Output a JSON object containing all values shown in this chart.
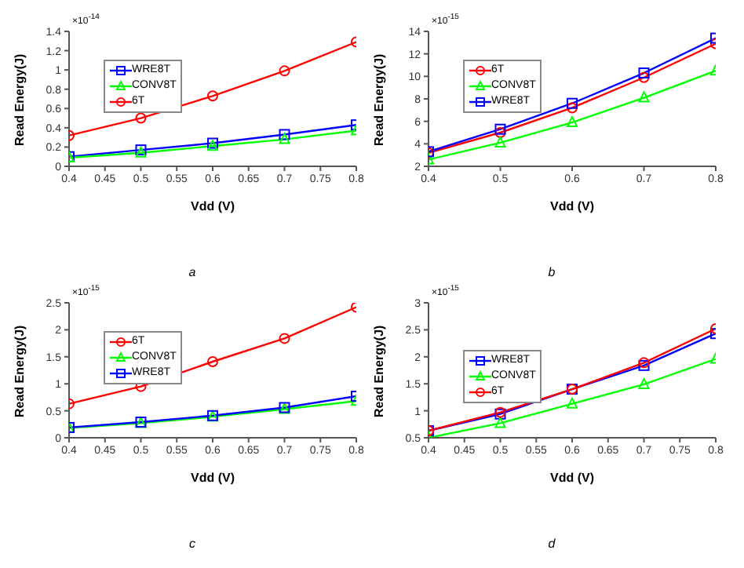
{
  "chart_data": [
    {
      "type": "line",
      "annotations": [
        "×10$^{-14}$",
        "a"
      ],
      "xlabel": "Vdd (V)",
      "ylabel": "Read Energy(J)",
      "x": [
        0.4,
        0.5,
        0.6,
        0.7,
        0.8
      ],
      "xlim": [
        0.4,
        0.8
      ],
      "xticks": [
        0.4,
        0.45,
        0.5,
        0.55,
        0.6,
        0.65,
        0.7,
        0.75,
        0.8
      ],
      "ylim": [
        0,
        1.4
      ],
      "yticks": [
        0,
        0.2,
        0.4,
        0.6,
        0.8,
        1,
        1.2,
        1.4
      ],
      "legend": "top left",
      "grid": false,
      "line_style": "solid",
      "series": [
        {
          "name": "WRE8T",
          "color": "#0000ff",
          "marker": "square",
          "values": [
            0.1,
            0.17,
            0.24,
            0.33,
            0.43
          ]
        },
        {
          "name": "CONV8T",
          "color": "#00ff00",
          "marker": "triangle",
          "values": [
            0.09,
            0.14,
            0.21,
            0.28,
            0.37
          ]
        },
        {
          "name": "6T",
          "color": "#ff0000",
          "marker": "circle",
          "values": [
            0.32,
            0.5,
            0.73,
            0.99,
            1.29
          ]
        }
      ]
    },
    {
      "type": "line",
      "annotations": [
        "×10$^{-15}$",
        "b"
      ],
      "xlabel": "Vdd (V)",
      "ylabel": "Read Energy(J)",
      "x": [
        0.4,
        0.5,
        0.6,
        0.7,
        0.8
      ],
      "xlim": [
        0.4,
        0.8
      ],
      "xticks": [
        0.4,
        0.5,
        0.6,
        0.7,
        0.8
      ],
      "ylim": [
        2,
        14
      ],
      "yticks": [
        2,
        4,
        6,
        8,
        10,
        12,
        14
      ],
      "legend": "top left",
      "grid": false,
      "line_style": "solid",
      "series": [
        {
          "name": "6T",
          "color": "#ff0000",
          "marker": "circle",
          "values": [
            3.2,
            5.0,
            7.2,
            9.9,
            12.9
          ]
        },
        {
          "name": "CONV8T",
          "color": "#00ff00",
          "marker": "triangle",
          "values": [
            2.6,
            4.1,
            5.9,
            8.1,
            10.5
          ]
        },
        {
          "name": "WRE8T",
          "color": "#0000ff",
          "marker": "square",
          "values": [
            3.3,
            5.3,
            7.6,
            10.3,
            13.4
          ]
        }
      ]
    },
    {
      "type": "line",
      "annotations": [
        "×10$^{-15}$",
        "c"
      ],
      "xlabel": "Vdd (V)",
      "ylabel": "Read Energy(J)",
      "x": [
        0.4,
        0.5,
        0.6,
        0.7,
        0.8
      ],
      "xlim": [
        0.4,
        0.8
      ],
      "xticks": [
        0.4,
        0.45,
        0.5,
        0.55,
        0.6,
        0.65,
        0.7,
        0.75,
        0.8
      ],
      "ylim": [
        0,
        2.5
      ],
      "yticks": [
        0,
        0.5,
        1,
        1.5,
        2,
        2.5
      ],
      "legend": "top left",
      "grid": false,
      "line_style": "solid",
      "series": [
        {
          "name": "6T",
          "color": "#ff0000",
          "marker": "circle",
          "values": [
            0.63,
            0.95,
            1.41,
            1.84,
            2.42
          ]
        },
        {
          "name": "CONV8T",
          "color": "#00ff00",
          "marker": "triangle",
          "values": [
            0.18,
            0.27,
            0.39,
            0.53,
            0.68
          ]
        },
        {
          "name": "WRE8T",
          "color": "#0000ff",
          "marker": "square",
          "values": [
            0.19,
            0.29,
            0.41,
            0.56,
            0.77
          ]
        }
      ]
    },
    {
      "type": "line",
      "annotations": [
        "×10$^{-15}$",
        "d"
      ],
      "xlabel": "Vdd (V)",
      "ylabel": "Read Energy(J)",
      "x": [
        0.4,
        0.5,
        0.6,
        0.7,
        0.8
      ],
      "xlim": [
        0.4,
        0.8
      ],
      "xticks": [
        0.4,
        0.45,
        0.5,
        0.55,
        0.6,
        0.65,
        0.7,
        0.75,
        0.8
      ],
      "ylim": [
        0.5,
        3
      ],
      "yticks": [
        0.5,
        1,
        1.5,
        2,
        2.5,
        3
      ],
      "legend": "left",
      "grid": false,
      "line_style": "solid",
      "series": [
        {
          "name": "WRE8T",
          "color": "#0000ff",
          "marker": "square",
          "values": [
            0.63,
            0.94,
            1.4,
            1.84,
            2.43
          ]
        },
        {
          "name": "CONV8T",
          "color": "#00ff00",
          "marker": "triangle",
          "values": [
            0.5,
            0.77,
            1.13,
            1.49,
            1.96
          ]
        },
        {
          "name": "6T",
          "color": "#ff0000",
          "marker": "circle",
          "values": [
            0.63,
            0.97,
            1.4,
            1.89,
            2.52
          ]
        }
      ]
    }
  ]
}
